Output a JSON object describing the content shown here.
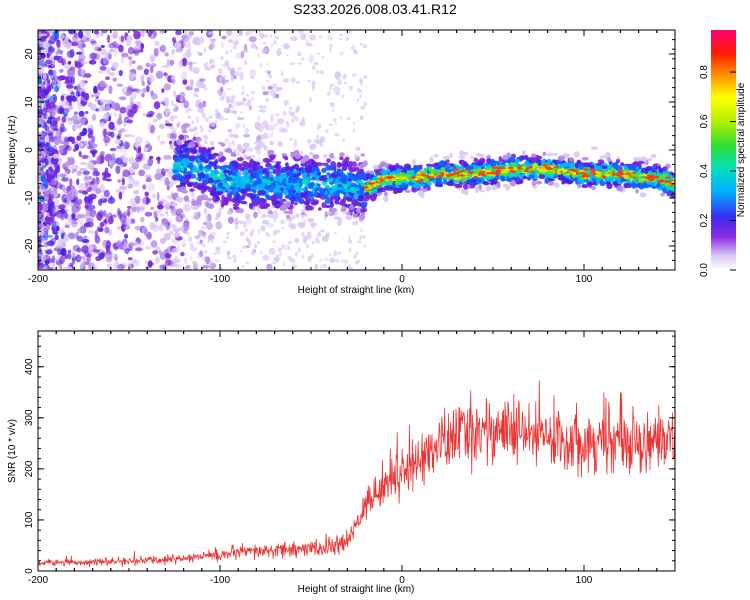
{
  "title": "S233.2026.008.03.41.R12",
  "chart_data": [
    {
      "type": "heatmap",
      "title": "S233.2026.008.03.41.R12",
      "xlabel": "Height of straight line (km)",
      "ylabel": "Frequency (Hz)",
      "xlim": [
        -200,
        150
      ],
      "ylim": [
        -25,
        25
      ],
      "xticks": [
        -200,
        -100,
        0,
        100
      ],
      "yticks": [
        -20,
        -10,
        0,
        10,
        20
      ],
      "ridge": {
        "x": [
          -200,
          -150,
          -120,
          -110,
          -100,
          -80,
          -60,
          -40,
          -20,
          -10,
          0,
          20,
          40,
          60,
          80,
          100,
          120,
          140,
          150
        ],
        "freq": [
          -5,
          -5,
          -3,
          -4,
          -6,
          -7,
          -7,
          -7,
          -8,
          -6,
          -6,
          -5,
          -5,
          -4,
          -4,
          -5,
          -5,
          -6,
          -7
        ]
      },
      "colorbar": {
        "label": "Normalized spectral amplitude",
        "range": [
          0.0,
          0.97
        ],
        "ticks": [
          0.0,
          0.2,
          0.4,
          0.6,
          0.8
        ]
      }
    },
    {
      "type": "line",
      "xlabel": "Height of straight line (km)",
      "ylabel": "SNR (10 * v/v)",
      "xlim": [
        -200,
        150
      ],
      "ylim": [
        0,
        470
      ],
      "xticks": [
        -200,
        -100,
        0,
        100
      ],
      "yticks": [
        0,
        100,
        200,
        300,
        400
      ],
      "series_color": "#ee3333",
      "trend": {
        "x": [
          -200,
          -160,
          -130,
          -100,
          -80,
          -60,
          -40,
          -30,
          -20,
          -10,
          0,
          10,
          20,
          30,
          40,
          50,
          60,
          80,
          100,
          120,
          150
        ],
        "snr": [
          16,
          18,
          22,
          32,
          38,
          42,
          45,
          55,
          130,
          170,
          195,
          220,
          245,
          265,
          275,
          280,
          270,
          260,
          255,
          255,
          255
        ]
      }
    }
  ]
}
